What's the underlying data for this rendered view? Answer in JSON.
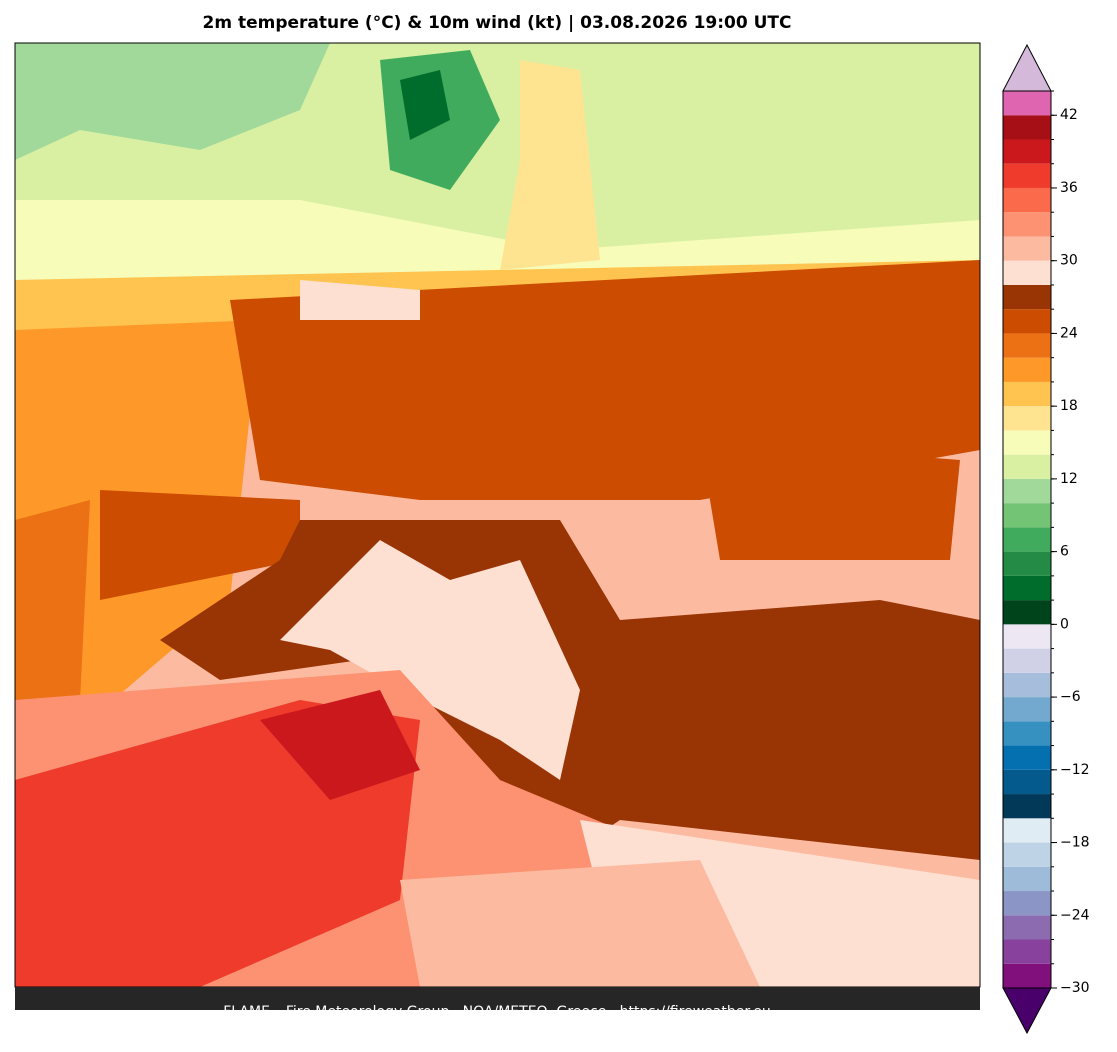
{
  "title": "2m temperature (°C) & 10m wind (kt)  |  03.08.2026 19:00 UTC",
  "footer": "FLAME – Fire Meteorology Group · NOA/METEO, Greece · https://fireweather.eu",
  "colorbar": {
    "levels": [
      -30,
      -28,
      -26,
      -24,
      -22,
      -20,
      -18,
      -16,
      -14,
      -12,
      -10,
      -8,
      -6,
      -4,
      -2,
      0,
      2,
      4,
      6,
      8,
      10,
      12,
      14,
      16,
      18,
      20,
      22,
      24,
      26,
      28,
      30,
      32,
      34,
      36,
      38,
      40,
      42,
      44
    ],
    "colors": [
      "#810f7c",
      "#88419d",
      "#8c6bb1",
      "#8c96c6",
      "#9ebcda",
      "#bfd3e6",
      "#e0ecf4",
      "#023858",
      "#045a8d",
      "#0570b0",
      "#3690c0",
      "#74a9cf",
      "#a6bddb",
      "#d0d1e6",
      "#ece7f2",
      "#00441b",
      "#006d2c",
      "#238b45",
      "#41ab5d",
      "#74c476",
      "#a1d99b",
      "#d9f0a3",
      "#f7fcb9",
      "#fee391",
      "#fec44f",
      "#fe9929",
      "#ec7014",
      "#cc4c02",
      "#993404",
      "#fee0d2",
      "#fcbba1",
      "#fc9272",
      "#fb6a4a",
      "#ef3b2c",
      "#cb181d",
      "#a50f15",
      "#df65b0"
    ],
    "over_color": "#d4b9da",
    "under_color": "#49006a",
    "ticks": [
      {
        "value": -30,
        "label": "−30"
      },
      {
        "value": -24,
        "label": "−24"
      },
      {
        "value": -18,
        "label": "−18"
      },
      {
        "value": -12,
        "label": "−12"
      },
      {
        "value": -6,
        "label": "−6"
      },
      0,
      6,
      12,
      18,
      24,
      30,
      36,
      42
    ]
  }
}
